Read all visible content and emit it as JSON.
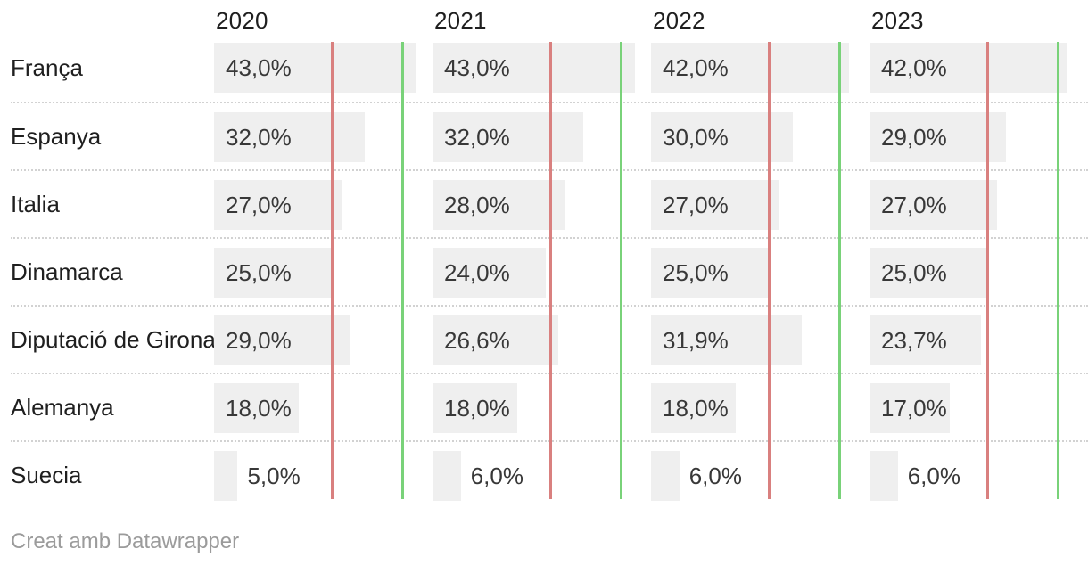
{
  "chart_data": {
    "type": "bar",
    "orientation": "horizontal",
    "title": "",
    "categories": [
      "França",
      "Espanya",
      "Italia",
      "Dinamarca",
      "Diputació de Girona",
      "Alemanya",
      "Suecia"
    ],
    "columns": [
      "2020",
      "2021",
      "2022",
      "2023"
    ],
    "series": [
      {
        "name": "2020",
        "values": [
          43.0,
          32.0,
          27.0,
          25.0,
          29.0,
          18.0,
          5.0
        ],
        "labels": [
          "43,0%",
          "32,0%",
          "27,0%",
          "25,0%",
          "29,0%",
          "18,0%",
          "5,0%"
        ]
      },
      {
        "name": "2021",
        "values": [
          43.0,
          32.0,
          28.0,
          24.0,
          26.6,
          18.0,
          6.0
        ],
        "labels": [
          "43,0%",
          "32,0%",
          "28,0%",
          "24,0%",
          "26,6%",
          "18,0%",
          "6,0%"
        ]
      },
      {
        "name": "2022",
        "values": [
          42.0,
          30.0,
          27.0,
          25.0,
          31.9,
          18.0,
          6.0
        ],
        "labels": [
          "42,0%",
          "30,0%",
          "27,0%",
          "25,0%",
          "31,9%",
          "18,0%",
          "6,0%"
        ]
      },
      {
        "name": "2023",
        "values": [
          42.0,
          29.0,
          27.0,
          25.0,
          23.7,
          17.0,
          6.0
        ],
        "labels": [
          "42,0%",
          "29,0%",
          "27,0%",
          "25,0%",
          "23,7%",
          "17,0%",
          "6,0%"
        ]
      }
    ],
    "xlim": [
      0,
      45
    ],
    "grid": false,
    "legend": "none",
    "reference_lines": [
      {
        "name": "red-reference-line",
        "value": 25,
        "color": "#d9807f"
      },
      {
        "name": "green-reference-line",
        "value": 40,
        "color": "#79d279"
      }
    ],
    "bar_color": "#efefef",
    "separator_color": "#d2d2d2"
  },
  "footer": {
    "attribution": "Creat amb Datawrapper"
  }
}
